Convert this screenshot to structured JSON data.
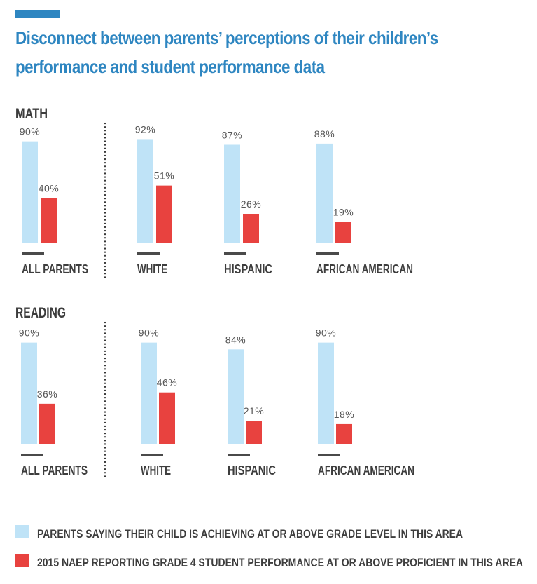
{
  "title": "Disconnect between parents’ perceptions of their children’s performance and student performance data",
  "colors": {
    "parents": "#bfe3f7",
    "naep": "#e8423f",
    "accent": "#2e86c1",
    "text": "#3d3d3d"
  },
  "chart_data": [
    {
      "type": "bar",
      "title": "MATH",
      "categories": [
        "ALL PARENTS",
        "WHITE",
        "HISPANIC",
        "AFRICAN AMERICAN"
      ],
      "series": [
        {
          "name": "PARENTS SAYING THEIR CHILD IS ACHIEVING AT OR ABOVE GRADE LEVEL IN THIS AREA",
          "values": [
            90,
            92,
            87,
            88
          ]
        },
        {
          "name": "2015 NAEP REPORTING GRADE 4 STUDENT PERFORMANCE AT OR ABOVE PROFICIENT IN THIS AREA",
          "values": [
            40,
            51,
            26,
            19
          ]
        }
      ],
      "ylim": [
        0,
        100
      ]
    },
    {
      "type": "bar",
      "title": "READING",
      "categories": [
        "ALL PARENTS",
        "WHITE",
        "HISPANIC",
        "AFRICAN AMERICAN"
      ],
      "series": [
        {
          "name": "PARENTS SAYING THEIR CHILD IS ACHIEVING AT OR ABOVE GRADE LEVEL IN THIS AREA",
          "values": [
            90,
            90,
            84,
            90
          ]
        },
        {
          "name": "2015 NAEP REPORTING GRADE 4 STUDENT PERFORMANCE AT OR ABOVE PROFICIENT IN THIS AREA",
          "values": [
            36,
            46,
            21,
            18
          ]
        }
      ],
      "ylim": [
        0,
        100
      ]
    }
  ],
  "legend": [
    {
      "label": "PARENTS SAYING THEIR CHILD IS ACHIEVING AT OR ABOVE GRADE LEVEL IN THIS AREA",
      "color": "#bfe3f7"
    },
    {
      "label": "2015 NAEP REPORTING GRADE 4 STUDENT PERFORMANCE AT OR ABOVE PROFICIENT IN THIS AREA",
      "color": "#e8423f"
    }
  ]
}
